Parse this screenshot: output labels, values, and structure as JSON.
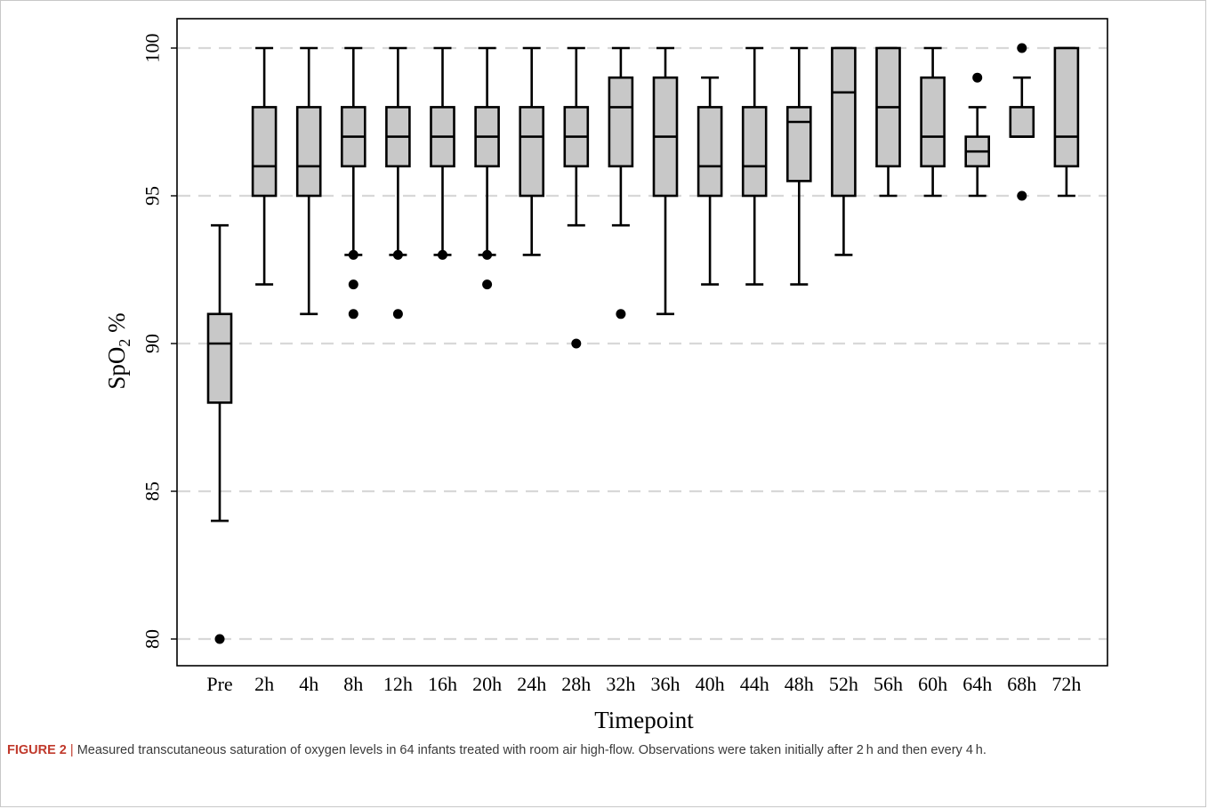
{
  "chart_data": {
    "type": "boxplot",
    "title": "",
    "xlabel": "Timepoint",
    "ylabel": "SpO",
    "ylabel_subscript": "2",
    "ylabel_suffix": " %",
    "ylim": [
      79,
      101
    ],
    "yticks": [
      80,
      85,
      90,
      95,
      100
    ],
    "yticks_labels": [
      "80",
      "85",
      "90",
      "95",
      "100"
    ],
    "grid": "horizontal dashed at y ticks",
    "colors": {
      "box_fill": "#c8c8c8",
      "stroke": "#000000",
      "grid": "#d8d8d8"
    },
    "categories": [
      "Pre",
      "2h",
      "4h",
      "8h",
      "12h",
      "16h",
      "20h",
      "24h",
      "28h",
      "32h",
      "36h",
      "40h",
      "44h",
      "48h",
      "52h",
      "56h",
      "60h",
      "64h",
      "68h",
      "72h"
    ],
    "boxes": [
      {
        "label": "Pre",
        "whislo": 84,
        "q1": 88,
        "med": 90,
        "q3": 91,
        "whishi": 94,
        "fliers": [
          80
        ]
      },
      {
        "label": "2h",
        "whislo": 92,
        "q1": 95,
        "med": 96,
        "q3": 98,
        "whishi": 100,
        "fliers": []
      },
      {
        "label": "4h",
        "whislo": 91,
        "q1": 95,
        "med": 96,
        "q3": 98,
        "whishi": 100,
        "fliers": []
      },
      {
        "label": "8h",
        "whislo": 93,
        "q1": 96,
        "med": 97,
        "q3": 98,
        "whishi": 100,
        "fliers": [
          93,
          92,
          91
        ]
      },
      {
        "label": "12h",
        "whislo": 93,
        "q1": 96,
        "med": 97,
        "q3": 98,
        "whishi": 100,
        "fliers": [
          93,
          91
        ]
      },
      {
        "label": "16h",
        "whislo": 93,
        "q1": 96,
        "med": 97,
        "q3": 98,
        "whishi": 100,
        "fliers": [
          93
        ]
      },
      {
        "label": "20h",
        "whislo": 93,
        "q1": 96,
        "med": 97,
        "q3": 98,
        "whishi": 100,
        "fliers": [
          93,
          92
        ]
      },
      {
        "label": "24h",
        "whislo": 93,
        "q1": 95,
        "med": 97,
        "q3": 98,
        "whishi": 100,
        "fliers": []
      },
      {
        "label": "28h",
        "whislo": 94,
        "q1": 96,
        "med": 97,
        "q3": 98,
        "whishi": 100,
        "fliers": [
          90
        ]
      },
      {
        "label": "32h",
        "whislo": 94,
        "q1": 96,
        "med": 98,
        "q3": 99,
        "whishi": 100,
        "fliers": [
          91
        ]
      },
      {
        "label": "36h",
        "whislo": 91,
        "q1": 95,
        "med": 97,
        "q3": 99,
        "whishi": 100,
        "fliers": []
      },
      {
        "label": "40h",
        "whislo": 92,
        "q1": 95,
        "med": 96,
        "q3": 98,
        "whishi": 99,
        "fliers": []
      },
      {
        "label": "44h",
        "whislo": 92,
        "q1": 95,
        "med": 96,
        "q3": 98,
        "whishi": 100,
        "fliers": []
      },
      {
        "label": "48h",
        "whislo": 92,
        "q1": 95.5,
        "med": 97.5,
        "q3": 98,
        "whishi": 100,
        "fliers": []
      },
      {
        "label": "52h",
        "whislo": 93,
        "q1": 95,
        "med": 98.5,
        "q3": 100,
        "whishi": 100,
        "fliers": []
      },
      {
        "label": "56h",
        "whislo": 95,
        "q1": 96,
        "med": 98,
        "q3": 100,
        "whishi": 100,
        "fliers": []
      },
      {
        "label": "60h",
        "whislo": 95,
        "q1": 96,
        "med": 97,
        "q3": 99,
        "whishi": 100,
        "fliers": []
      },
      {
        "label": "64h",
        "whislo": 95,
        "q1": 96,
        "med": 96.5,
        "q3": 97,
        "whishi": 98,
        "fliers": [
          99
        ]
      },
      {
        "label": "68h",
        "whislo": 97,
        "q1": 97,
        "med": 97,
        "q3": 98,
        "whishi": 99,
        "fliers": [
          100,
          95
        ]
      },
      {
        "label": "72h",
        "whislo": 95,
        "q1": 96,
        "med": 97,
        "q3": 100,
        "whishi": 100,
        "fliers": []
      }
    ]
  },
  "caption": {
    "figure_label": "FIGURE 2",
    "separator": " | ",
    "text": "Measured transcutaneous saturation of oxygen levels in 64 infants treated with room air high-flow. Observations were taken initially after 2 h and then every 4 h."
  }
}
